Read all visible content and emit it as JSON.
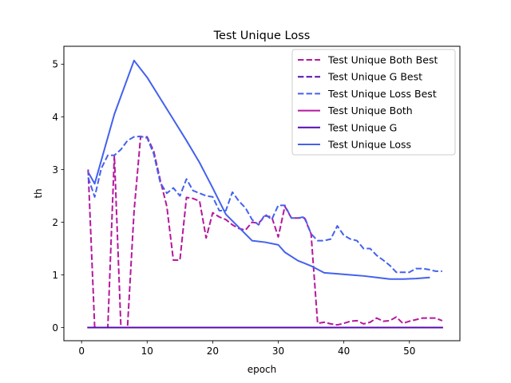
{
  "chart_data": {
    "type": "line",
    "title": "Test Unique Loss",
    "xlabel": "epoch",
    "ylabel": "th",
    "xlim": [
      -2.7,
      57.7
    ],
    "ylim": [
      -0.25,
      5.34
    ],
    "xticks": [
      0,
      10,
      20,
      30,
      40,
      50
    ],
    "yticks": [
      0,
      1,
      2,
      3,
      4,
      5
    ],
    "grid": false,
    "legend_position": "top-right",
    "series": [
      {
        "name": "Test Unique Both Best",
        "color": "#b5179e",
        "style": "dashed",
        "x": [
          1,
          2,
          3,
          4,
          5,
          6,
          7,
          8,
          9,
          10,
          11,
          12,
          13,
          14,
          15,
          16,
          17,
          18,
          19,
          20,
          21,
          22,
          23,
          24,
          25,
          26,
          27,
          28,
          29,
          30,
          31,
          32,
          33,
          34,
          35,
          36,
          37,
          38,
          39,
          40,
          41,
          42,
          43,
          44,
          45,
          46,
          47,
          48,
          49,
          50,
          51,
          52,
          53,
          54,
          55
        ],
        "y": [
          3.0,
          0.0,
          0.0,
          0.0,
          3.27,
          0.0,
          0.0,
          2.2,
          3.62,
          3.62,
          3.35,
          2.8,
          2.3,
          1.28,
          1.28,
          2.47,
          2.45,
          2.4,
          1.7,
          2.18,
          2.1,
          2.05,
          1.95,
          1.88,
          1.85,
          2.0,
          1.98,
          2.12,
          2.1,
          1.72,
          2.3,
          2.08,
          2.08,
          2.08,
          1.78,
          0.08,
          0.1,
          0.07,
          0.05,
          0.08,
          0.12,
          0.13,
          0.07,
          0.1,
          0.18,
          0.12,
          0.13,
          0.2,
          0.08,
          0.12,
          0.15,
          0.18,
          0.18,
          0.18,
          0.13
        ]
      },
      {
        "name": "Test Unique G Best",
        "color": "#560bad",
        "style": "dashed",
        "x": [
          1,
          55
        ],
        "y": [
          0.0,
          0.0
        ]
      },
      {
        "name": "Test Unique Loss Best",
        "color": "#4361ee",
        "style": "dashed",
        "x": [
          1,
          2,
          3,
          4,
          5,
          6,
          7,
          8,
          9,
          10,
          11,
          12,
          13,
          14,
          15,
          16,
          17,
          18,
          19,
          20,
          21,
          22,
          23,
          24,
          25,
          26,
          27,
          28,
          29,
          30,
          31,
          32,
          33,
          34,
          35,
          36,
          37,
          38,
          39,
          40,
          41,
          42,
          43,
          44,
          45,
          46,
          47,
          48,
          49,
          50,
          51,
          52,
          53,
          54,
          55
        ],
        "y": [
          2.85,
          2.48,
          3.02,
          3.27,
          3.27,
          3.38,
          3.55,
          3.62,
          3.63,
          3.6,
          3.3,
          2.75,
          2.55,
          2.65,
          2.5,
          2.82,
          2.6,
          2.55,
          2.5,
          2.48,
          2.22,
          2.22,
          2.57,
          2.4,
          2.27,
          2.05,
          1.95,
          2.15,
          2.05,
          2.32,
          2.32,
          2.08,
          2.08,
          2.1,
          1.78,
          1.65,
          1.65,
          1.68,
          1.93,
          1.75,
          1.68,
          1.65,
          1.5,
          1.5,
          1.37,
          1.28,
          1.18,
          1.05,
          1.05,
          1.05,
          1.12,
          1.12,
          1.1,
          1.07,
          1.07
        ]
      },
      {
        "name": "Test Unique Both",
        "color": "#b5179e",
        "style": "solid",
        "x": [
          1,
          55
        ],
        "y": [
          0.0,
          0.0
        ]
      },
      {
        "name": "Test Unique G",
        "color": "#560bad",
        "style": "solid",
        "x": [
          1,
          55
        ],
        "y": [
          0.0,
          0.0
        ]
      },
      {
        "name": "Test Unique Loss",
        "color": "#4361ee",
        "style": "solid",
        "x": [
          1,
          2,
          5,
          8,
          10,
          12,
          14,
          16,
          18,
          20,
          22,
          24,
          26,
          28,
          30,
          31,
          33,
          35,
          37,
          39,
          41,
          43,
          45,
          47,
          49,
          51,
          53
        ],
        "y": [
          2.95,
          2.73,
          4.05,
          5.07,
          4.75,
          4.35,
          3.95,
          3.55,
          3.13,
          2.65,
          2.15,
          1.9,
          1.65,
          1.62,
          1.57,
          1.43,
          1.27,
          1.17,
          1.04,
          1.02,
          1.0,
          0.98,
          0.95,
          0.92,
          0.92,
          0.93,
          0.95
        ]
      }
    ]
  }
}
